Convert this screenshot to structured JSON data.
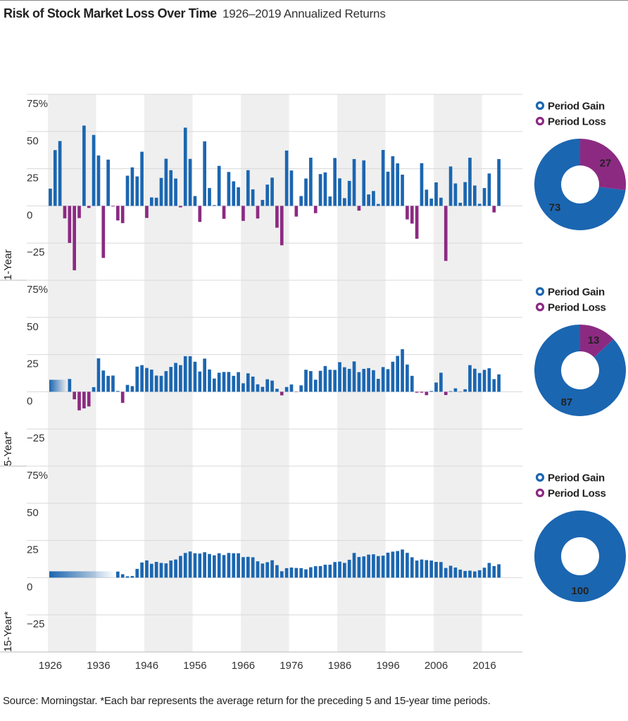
{
  "title": "Risk of Stock Market Loss Over Time",
  "subtitle": "1926–2019 Annualized Returns",
  "source": "Source: Morningstar. *Each bar represents the average return for the preceding 5 and 15-year time periods.",
  "chart_data": [
    {
      "type": "bar",
      "axis_label": "1-Year",
      "x": [
        1926,
        1927,
        1928,
        1929,
        1930,
        1931,
        1932,
        1933,
        1934,
        1935,
        1936,
        1937,
        1938,
        1939,
        1940,
        1941,
        1942,
        1943,
        1944,
        1945,
        1946,
        1947,
        1948,
        1949,
        1950,
        1951,
        1952,
        1953,
        1954,
        1955,
        1956,
        1957,
        1958,
        1959,
        1960,
        1961,
        1962,
        1963,
        1964,
        1965,
        1966,
        1967,
        1968,
        1969,
        1970,
        1971,
        1972,
        1973,
        1974,
        1975,
        1976,
        1977,
        1978,
        1979,
        1980,
        1981,
        1982,
        1983,
        1984,
        1985,
        1986,
        1987,
        1988,
        1989,
        1990,
        1991,
        1992,
        1993,
        1994,
        1995,
        1996,
        1997,
        1998,
        1999,
        2000,
        2001,
        2002,
        2003,
        2004,
        2005,
        2006,
        2007,
        2008,
        2009,
        2010,
        2011,
        2012,
        2013,
        2014,
        2015,
        2016,
        2017,
        2018,
        2019
      ],
      "values": [
        11.6,
        37.5,
        43.6,
        -8.4,
        -24.9,
        -43.3,
        -8.2,
        54.0,
        -1.4,
        47.7,
        33.9,
        -35.0,
        31.1,
        -0.4,
        -9.8,
        -11.6,
        20.3,
        25.9,
        19.8,
        36.4,
        -8.1,
        5.7,
        5.5,
        18.8,
        31.7,
        24.0,
        18.4,
        -1.0,
        52.6,
        31.6,
        6.6,
        -10.8,
        43.4,
        12.0,
        0.5,
        26.9,
        -8.7,
        22.8,
        16.5,
        12.5,
        -10.1,
        24.0,
        11.1,
        -8.5,
        4.0,
        14.3,
        19.0,
        -14.7,
        -26.5,
        37.2,
        23.8,
        -7.2,
        6.6,
        18.4,
        32.4,
        -4.9,
        21.4,
        22.5,
        6.3,
        32.2,
        18.5,
        5.2,
        16.8,
        31.5,
        -3.2,
        30.6,
        7.7,
        10.0,
        1.3,
        37.6,
        23.0,
        33.4,
        28.6,
        21.0,
        -9.1,
        -11.9,
        -22.1,
        28.7,
        10.9,
        4.9,
        15.8,
        5.5,
        -37.0,
        26.5,
        15.1,
        2.1,
        16.0,
        32.4,
        13.7,
        1.4,
        12.0,
        21.8,
        -4.4,
        31.5
      ],
      "color": "#1b66b1",
      "negative_color": "#8c2a82",
      "xlim": [
        1925.5,
        2019.5
      ],
      "ylim": [
        -50,
        75
      ],
      "yticks": [
        {
          "value": 75,
          "label": "75%"
        },
        50,
        25,
        0,
        {
          "value": -25,
          "label": "−25"
        }
      ],
      "grid": true
    },
    {
      "type": "pie",
      "labels": [
        "Period Gain",
        "Period Loss"
      ],
      "values": [
        73,
        27
      ],
      "colors": [
        "#1b66b1",
        "#8c2a82"
      ]
    },
    {
      "type": "bar",
      "axis_label": "5-Year*",
      "x": [
        1926,
        1927,
        1928,
        1929,
        1930,
        1931,
        1932,
        1933,
        1934,
        1935,
        1936,
        1937,
        1938,
        1939,
        1940,
        1941,
        1942,
        1943,
        1944,
        1945,
        1946,
        1947,
        1948,
        1949,
        1950,
        1951,
        1952,
        1953,
        1954,
        1955,
        1956,
        1957,
        1958,
        1959,
        1960,
        1961,
        1962,
        1963,
        1964,
        1965,
        1966,
        1967,
        1968,
        1969,
        1970,
        1971,
        1972,
        1973,
        1974,
        1975,
        1976,
        1977,
        1978,
        1979,
        1980,
        1981,
        1982,
        1983,
        1984,
        1985,
        1986,
        1987,
        1988,
        1989,
        1990,
        1991,
        1992,
        1993,
        1994,
        1995,
        1996,
        1997,
        1998,
        1999,
        2000,
        2001,
        2002,
        2003,
        2004,
        2005,
        2006,
        2007,
        2008,
        2009,
        2010,
        2011,
        2012,
        2013,
        2014,
        2015,
        2016,
        2017,
        2018,
        2019
      ],
      "values": [
        null,
        null,
        null,
        null,
        8.6,
        -5.1,
        -12.5,
        -11.2,
        -9.9,
        3.1,
        22.5,
        14.3,
        10.7,
        10.9,
        0.5,
        -7.5,
        4.6,
        3.8,
        16.9,
        17.9,
        16.0,
        14.9,
        10.9,
        10.7,
        13.9,
        16.7,
        19.4,
        17.9,
        23.9,
        23.9,
        20.2,
        13.6,
        22.3,
        15.0,
        8.9,
        12.8,
        13.3,
        13.3,
        10.7,
        13.2,
        5.7,
        12.4,
        10.2,
        5.0,
        3.3,
        8.4,
        7.5,
        2.0,
        -2.4,
        3.2,
        4.9,
        -0.2,
        4.3,
        14.8,
        13.9,
        8.1,
        14.1,
        17.3,
        14.8,
        14.7,
        19.9,
        16.5,
        15.4,
        20.4,
        13.2,
        15.4,
        15.9,
        14.5,
        8.7,
        16.6,
        15.2,
        20.2,
        24.1,
        28.6,
        18.3,
        10.7,
        -0.6,
        -0.6,
        -2.3,
        0.5,
        6.2,
        12.8,
        -2.2,
        0.4,
        2.3,
        -0.2,
        1.7,
        17.9,
        15.5,
        12.6,
        14.7,
        15.8,
        8.5,
        11.7
      ],
      "color": "#1b66b1",
      "negative_color": "#8c2a82",
      "xlim": [
        1925.5,
        2019.5
      ],
      "ylim": [
        -50,
        75
      ],
      "yticks": [
        {
          "value": 75,
          "label": "75%"
        },
        50,
        25,
        0,
        {
          "value": -25,
          "label": "−25"
        }
      ],
      "grid": true
    },
    {
      "type": "pie",
      "labels": [
        "Period Gain",
        "Period Loss"
      ],
      "values": [
        87,
        13
      ],
      "colors": [
        "#1b66b1",
        "#8c2a82"
      ]
    },
    {
      "type": "bar",
      "axis_label": "15-Year*",
      "x": [
        1926,
        1927,
        1928,
        1929,
        1930,
        1931,
        1932,
        1933,
        1934,
        1935,
        1936,
        1937,
        1938,
        1939,
        1940,
        1941,
        1942,
        1943,
        1944,
        1945,
        1946,
        1947,
        1948,
        1949,
        1950,
        1951,
        1952,
        1953,
        1954,
        1955,
        1956,
        1957,
        1958,
        1959,
        1960,
        1961,
        1962,
        1963,
        1964,
        1965,
        1966,
        1967,
        1968,
        1969,
        1970,
        1971,
        1972,
        1973,
        1974,
        1975,
        1976,
        1977,
        1978,
        1979,
        1980,
        1981,
        1982,
        1983,
        1984,
        1985,
        1986,
        1987,
        1988,
        1989,
        1990,
        1991,
        1992,
        1993,
        1994,
        1995,
        1996,
        1997,
        1998,
        1999,
        2000,
        2001,
        2002,
        2003,
        2004,
        2005,
        2006,
        2007,
        2008,
        2009,
        2010,
        2011,
        2012,
        2013,
        2014,
        2015,
        2016,
        2017,
        2018,
        2019
      ],
      "values": [
        null,
        null,
        null,
        null,
        null,
        null,
        null,
        null,
        null,
        null,
        null,
        null,
        null,
        null,
        4.1,
        2.3,
        0.9,
        1.1,
        5.9,
        10.2,
        11.6,
        9.3,
        10.6,
        9.9,
        9.6,
        11.5,
        12.2,
        14.6,
        16.6,
        17.6,
        16.4,
        16.2,
        17.1,
        15.9,
        15.0,
        16.4,
        15.2,
        16.6,
        16.4,
        16.4,
        13.8,
        14.0,
        13.7,
        11.0,
        9.5,
        10.4,
        11.7,
        8.4,
        4.3,
        6.4,
        6.8,
        6.5,
        6.4,
        5.6,
        7.0,
        7.7,
        7.8,
        8.7,
        8.7,
        10.5,
        10.8,
        9.9,
        12.0,
        16.6,
        13.9,
        14.3,
        15.5,
        15.7,
        14.5,
        14.8,
        16.8,
        17.5,
        17.9,
        18.9,
        16.7,
        13.7,
        11.5,
        12.2,
        11.8,
        11.5,
        10.6,
        10.5,
        6.5,
        8.0,
        6.8,
        5.4,
        4.5,
        4.7,
        4.2,
        5.0,
        6.7,
        9.9,
        7.8,
        9.0
      ],
      "color": "#1b66b1",
      "negative_color": "#8c2a82",
      "xlim": [
        1925.5,
        2019.5
      ],
      "ylim": [
        -50,
        75
      ],
      "yticks": [
        {
          "value": 75,
          "label": "75%"
        },
        50,
        25,
        0,
        {
          "value": -25,
          "label": "−25"
        }
      ],
      "grid": true,
      "xticks": [
        1926,
        1936,
        1946,
        1956,
        1966,
        1976,
        1986,
        1996,
        2006,
        2016
      ]
    },
    {
      "type": "pie",
      "labels": [
        "Period Gain",
        "Period Loss"
      ],
      "values": [
        100,
        0
      ],
      "colors": [
        "#1b66b1",
        "#8c2a82"
      ]
    }
  ]
}
